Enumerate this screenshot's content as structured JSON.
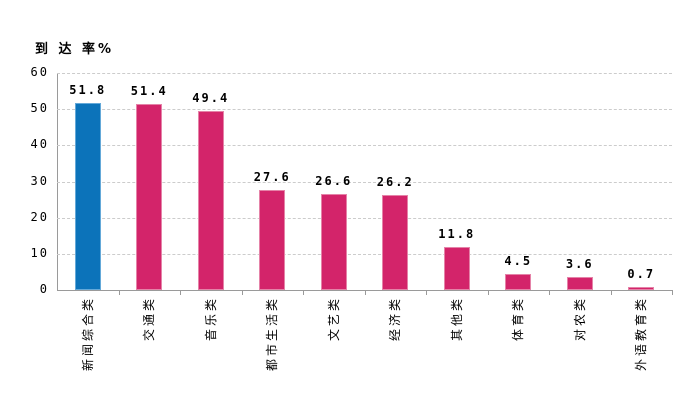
{
  "chart_data": {
    "type": "bar",
    "title": "",
    "ylabel": "到 达 率%",
    "xlabel": "",
    "legend": "none",
    "grid": "dashed-horizontal",
    "categories": [
      "新闻综合类",
      "交通类",
      "音乐类",
      "都市生活类",
      "文艺类",
      "经济类",
      "其他类",
      "体育类",
      "对农类",
      "外语教育类"
    ],
    "values": [
      51.8,
      51.4,
      49.4,
      27.6,
      26.6,
      26.2,
      11.8,
      4.5,
      3.6,
      0.7
    ],
    "value_labels": [
      "51.8",
      "51.4",
      "49.4",
      "27.6",
      "26.6",
      "26.2",
      "11.8",
      "4.5",
      "3.6",
      "0.7"
    ],
    "ylim": [
      0,
      60
    ],
    "yticks": [
      0,
      10,
      20,
      30,
      40,
      50,
      60
    ],
    "highlight_index": 0
  },
  "colors": {
    "background": "#ffffff",
    "highlight_bar": "#0c73ba",
    "highlight_bar_edge": "#64a9d9",
    "bar": "#d3246a",
    "bar_edge": "#e583a8",
    "axis": "#9a9a9a",
    "gridline": "#cccccc",
    "text": "#000000"
  }
}
